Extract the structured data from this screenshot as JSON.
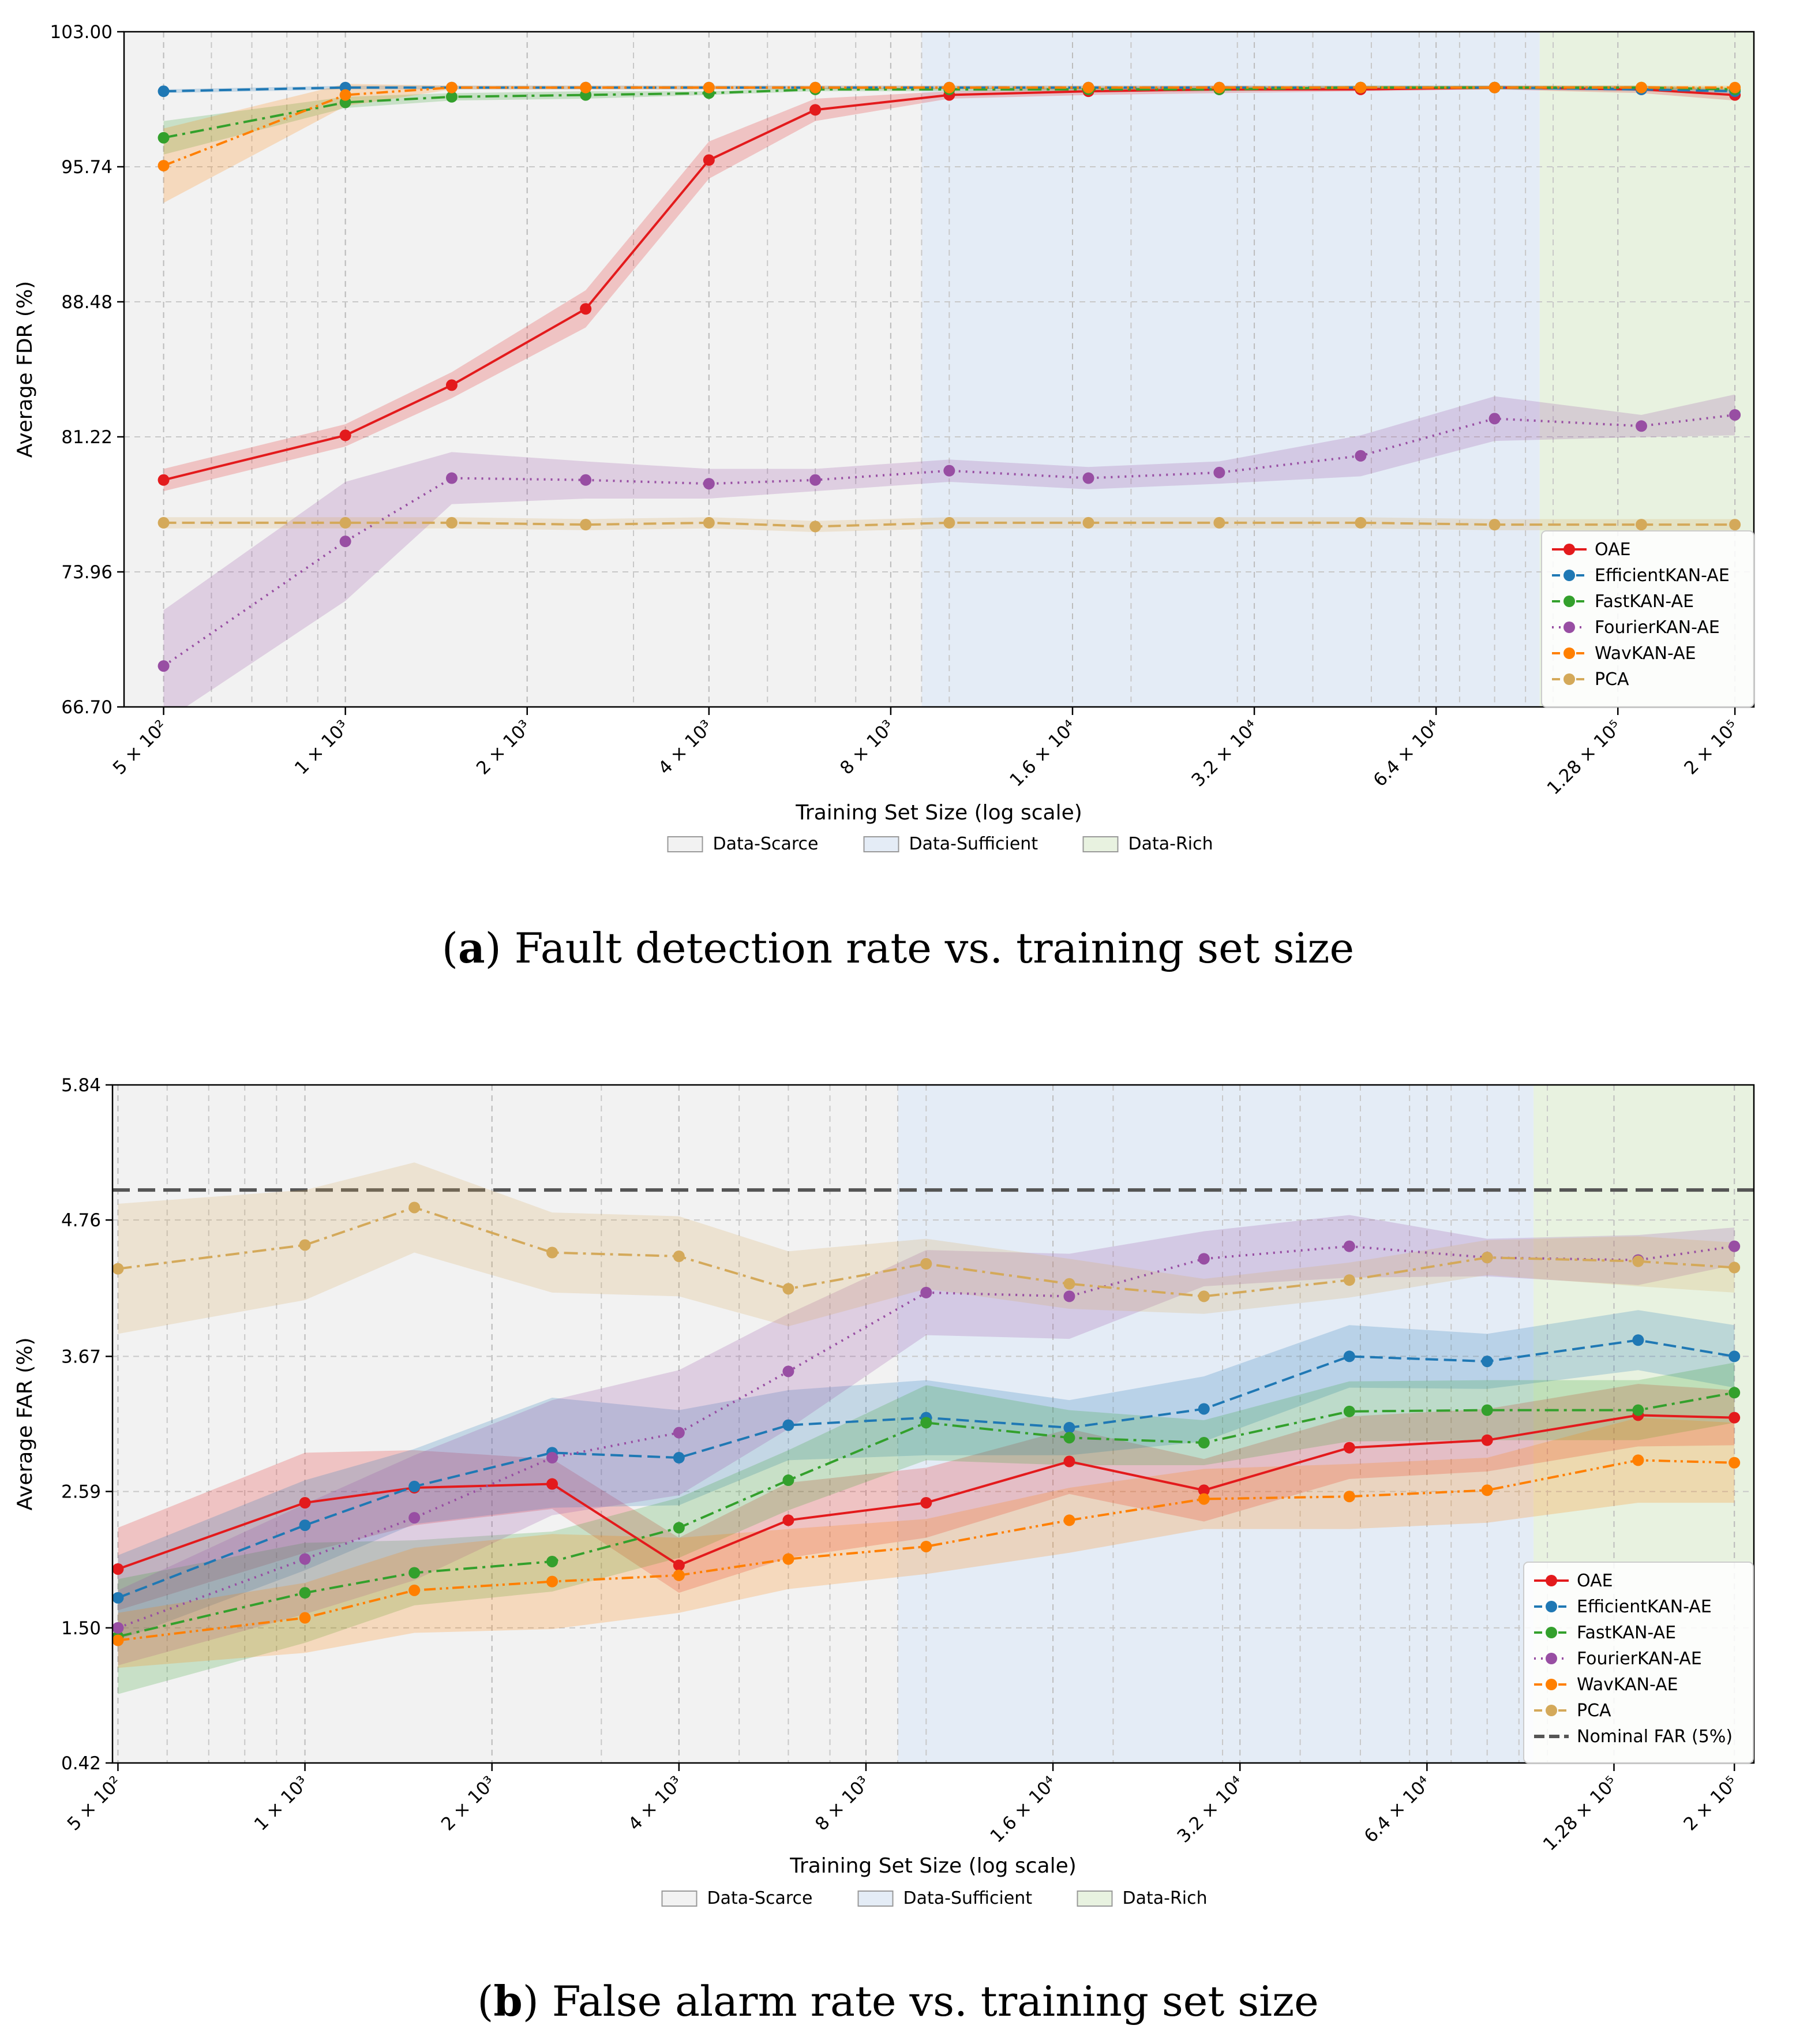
{
  "panels": [
    {
      "id": "a",
      "caption_letter": "a",
      "caption_text": "Fault detection rate vs. training set size",
      "ylabel": "Average FDR (%)",
      "xlabel": "Training Set Size (log scale)",
      "yticks": [
        "103.00",
        "95.74",
        "88.48",
        "81.22",
        "73.96",
        "66.70"
      ],
      "ylim": [
        66.7,
        103.0
      ],
      "xlim": [
        430,
        215000
      ],
      "x_scale": "log",
      "xticks": [
        {
          "value": 500,
          "label": "5 × 10²"
        },
        {
          "value": 1000,
          "label": "1 × 10³"
        },
        {
          "value": 2000,
          "label": "2 × 10³"
        },
        {
          "value": 4000,
          "label": "4 × 10³"
        },
        {
          "value": 8000,
          "label": "8 × 10³"
        },
        {
          "value": 16000,
          "label": "1.6 × 10⁴"
        },
        {
          "value": 32000,
          "label": "3.2 × 10⁴"
        },
        {
          "value": 64000,
          "label": "6.4 × 10⁴"
        },
        {
          "value": 128000,
          "label": "1.28 × 10⁵"
        },
        {
          "value": 200000,
          "label": "2 × 10⁵"
        }
      ],
      "regions": [
        {
          "name": "Data-Scarce",
          "from": 430,
          "to": 9000,
          "color": "#f2f2f2"
        },
        {
          "name": "Data-Sufficient",
          "from": 9000,
          "to": 95000,
          "color": "#e4ecf6"
        },
        {
          "name": "Data-Rich",
          "from": 95000,
          "to": 215000,
          "color": "#e8f2e0"
        }
      ],
      "legend_position": "lower right",
      "show_nominal": false
    },
    {
      "id": "b",
      "caption_letter": "b",
      "caption_text": "False alarm rate vs. training set size",
      "ylabel": "Average FAR (%)",
      "xlabel": "Training Set Size (log scale)",
      "yticks": [
        "5.84",
        "4.76",
        "3.67",
        "2.59",
        "1.50",
        "0.42"
      ],
      "ylim": [
        0.42,
        5.84
      ],
      "xlim": [
        490,
        215000
      ],
      "x_scale": "log",
      "xticks": [
        {
          "value": 500,
          "label": "5 × 10²"
        },
        {
          "value": 1000,
          "label": "1 × 10³"
        },
        {
          "value": 2000,
          "label": "2 × 10³"
        },
        {
          "value": 4000,
          "label": "4 × 10³"
        },
        {
          "value": 8000,
          "label": "8 × 10³"
        },
        {
          "value": 16000,
          "label": "1.6 × 10⁴"
        },
        {
          "value": 32000,
          "label": "3.2 × 10⁴"
        },
        {
          "value": 64000,
          "label": "6.4 × 10⁴"
        },
        {
          "value": 128000,
          "label": "1.28 × 10⁵"
        },
        {
          "value": 200000,
          "label": "2 × 10⁵"
        }
      ],
      "regions": [
        {
          "name": "Data-Scarce",
          "from": 490,
          "to": 9000,
          "color": "#f2f2f2"
        },
        {
          "name": "Data-Sufficient",
          "from": 9000,
          "to": 95000,
          "color": "#e4ecf6"
        },
        {
          "name": "Data-Rich",
          "from": 95000,
          "to": 215000,
          "color": "#e8f2e0"
        }
      ],
      "legend_position": "lower right",
      "show_nominal": true,
      "nominal_value": 5.0,
      "nominal_label": "Nominal FAR (5%)"
    }
  ],
  "region_legend": [
    "Data-Scarce",
    "Data-Sufficient",
    "Data-Rich"
  ],
  "chart_data": [
    {
      "type": "line",
      "title": "",
      "xlabel": "Training Set Size (log scale)",
      "ylabel": "Average FDR (%)",
      "x": [
        500,
        1000,
        1500,
        2500,
        4000,
        6000,
        10000,
        17000,
        28000,
        48000,
        80000,
        140000,
        200000
      ],
      "series": [
        {
          "name": "OAE",
          "color": "#e31a1c",
          "style": "solid",
          "values": [
            78.9,
            81.3,
            84.0,
            88.1,
            96.1,
            98.8,
            99.6,
            99.8,
            99.9,
            99.9,
            100.0,
            99.9,
            99.6
          ],
          "band": [
            0.6,
            0.6,
            0.7,
            1.0,
            1.0,
            0.6,
            0.2,
            0.2,
            0.2,
            0.1,
            0.1,
            0.2,
            0.3
          ]
        },
        {
          "name": "EfficientKAN-AE",
          "color": "#1f78b4",
          "style": "dashed",
          "values": [
            99.8,
            100.0,
            100.0,
            100.0,
            100.0,
            100.0,
            100.0,
            100.0,
            100.0,
            100.0,
            100.0,
            99.9,
            99.8
          ],
          "band": [
            0.1,
            0.1,
            0.1,
            0.1,
            0.1,
            0.1,
            0.1,
            0.1,
            0.1,
            0.1,
            0.1,
            0.1,
            0.1
          ]
        },
        {
          "name": "FastKAN-AE",
          "color": "#33a02c",
          "style": "dashdot",
          "values": [
            97.3,
            99.2,
            99.5,
            99.6,
            99.7,
            99.9,
            99.9,
            99.9,
            99.9,
            100.0,
            100.0,
            100.0,
            99.9
          ],
          "band": [
            0.9,
            0.3,
            0.2,
            0.2,
            0.1,
            0.1,
            0.1,
            0.1,
            0.1,
            0.1,
            0.1,
            0.1,
            0.1
          ]
        },
        {
          "name": "FourierKAN-AE",
          "color": "#984ea3",
          "style": "dotted",
          "values": [
            68.9,
            75.6,
            79.0,
            78.9,
            78.7,
            78.9,
            79.4,
            79.0,
            79.3,
            80.2,
            82.2,
            81.8,
            82.4
          ],
          "band": [
            3.0,
            3.2,
            1.4,
            1.0,
            0.8,
            0.6,
            0.6,
            0.6,
            0.6,
            1.1,
            1.2,
            0.6,
            1.1
          ]
        },
        {
          "name": "WavKAN-AE",
          "color": "#ff7f00",
          "style": "dashdotdot",
          "values": [
            95.8,
            99.6,
            100.0,
            100.0,
            100.0,
            100.0,
            100.0,
            100.0,
            100.0,
            100.0,
            100.0,
            100.0,
            100.0
          ],
          "band": [
            2.0,
            0.6,
            0.1,
            0.1,
            0.1,
            0.1,
            0.1,
            0.1,
            0.1,
            0.1,
            0.1,
            0.1,
            0.1
          ]
        },
        {
          "name": "PCA",
          "color": "#d4a95a",
          "style": "dashed",
          "values": [
            76.6,
            76.6,
            76.6,
            76.5,
            76.6,
            76.4,
            76.6,
            76.6,
            76.6,
            76.6,
            76.5,
            76.5,
            76.5
          ],
          "band": [
            0.3,
            0.3,
            0.3,
            0.3,
            0.3,
            0.3,
            0.3,
            0.3,
            0.3,
            0.3,
            0.3,
            0.3,
            0.3
          ]
        }
      ]
    },
    {
      "type": "line",
      "title": "",
      "xlabel": "Training Set Size (log scale)",
      "ylabel": "Average FAR (%)",
      "x": [
        500,
        1000,
        1500,
        2500,
        4000,
        6000,
        10000,
        17000,
        28000,
        48000,
        80000,
        140000,
        200000
      ],
      "series": [
        {
          "name": "OAE",
          "color": "#e31a1c",
          "style": "solid",
          "values": [
            1.97,
            2.5,
            2.62,
            2.65,
            2.0,
            2.36,
            2.5,
            2.83,
            2.6,
            2.94,
            3.0,
            3.2,
            3.18
          ],
          "band": [
            0.33,
            0.4,
            0.3,
            0.2,
            0.22,
            0.3,
            0.28,
            0.26,
            0.25,
            0.25,
            0.25,
            0.25,
            0.22
          ]
        },
        {
          "name": "EfficientKAN-AE",
          "color": "#1f78b4",
          "style": "dashed",
          "values": [
            1.74,
            2.32,
            2.63,
            2.9,
            2.86,
            3.12,
            3.18,
            3.1,
            3.25,
            3.67,
            3.63,
            3.8,
            3.67
          ],
          "band": [
            0.34,
            0.36,
            0.3,
            0.44,
            0.38,
            0.28,
            0.3,
            0.22,
            0.26,
            0.25,
            0.22,
            0.24,
            0.25
          ]
        },
        {
          "name": "FastKAN-AE",
          "color": "#33a02c",
          "style": "dashdot",
          "values": [
            1.43,
            1.78,
            1.94,
            2.03,
            2.3,
            2.68,
            3.14,
            3.02,
            2.98,
            3.23,
            3.24,
            3.24,
            3.38
          ],
          "band": [
            0.46,
            0.4,
            0.26,
            0.24,
            0.24,
            0.24,
            0.3,
            0.22,
            0.18,
            0.24,
            0.24,
            0.24,
            0.24
          ]
        },
        {
          "name": "FourierKAN-AE",
          "color": "#984ea3",
          "style": "dotted",
          "values": [
            1.5,
            2.05,
            2.38,
            2.86,
            3.06,
            3.55,
            4.18,
            4.15,
            4.45,
            4.55,
            4.46,
            4.44,
            4.55
          ],
          "band": [
            0.3,
            0.44,
            0.5,
            0.46,
            0.5,
            0.46,
            0.34,
            0.34,
            0.22,
            0.25,
            0.15,
            0.2,
            0.15
          ]
        },
        {
          "name": "WavKAN-AE",
          "color": "#ff7f00",
          "style": "dashdotdot",
          "values": [
            1.4,
            1.58,
            1.8,
            1.87,
            1.92,
            2.05,
            2.15,
            2.36,
            2.53,
            2.55,
            2.6,
            2.84,
            2.82
          ],
          "band": [
            0.22,
            0.28,
            0.34,
            0.38,
            0.3,
            0.24,
            0.22,
            0.26,
            0.24,
            0.26,
            0.26,
            0.34,
            0.32
          ]
        },
        {
          "name": "PCA",
          "color": "#d4a95a",
          "style": "dashdot",
          "values": [
            4.37,
            4.56,
            4.86,
            4.5,
            4.47,
            4.21,
            4.41,
            4.25,
            4.15,
            4.28,
            4.46,
            4.43,
            4.38
          ],
          "band": [
            0.52,
            0.44,
            0.36,
            0.32,
            0.32,
            0.3,
            0.2,
            0.2,
            0.14,
            0.14,
            0.14,
            0.2,
            0.2
          ]
        }
      ]
    }
  ]
}
